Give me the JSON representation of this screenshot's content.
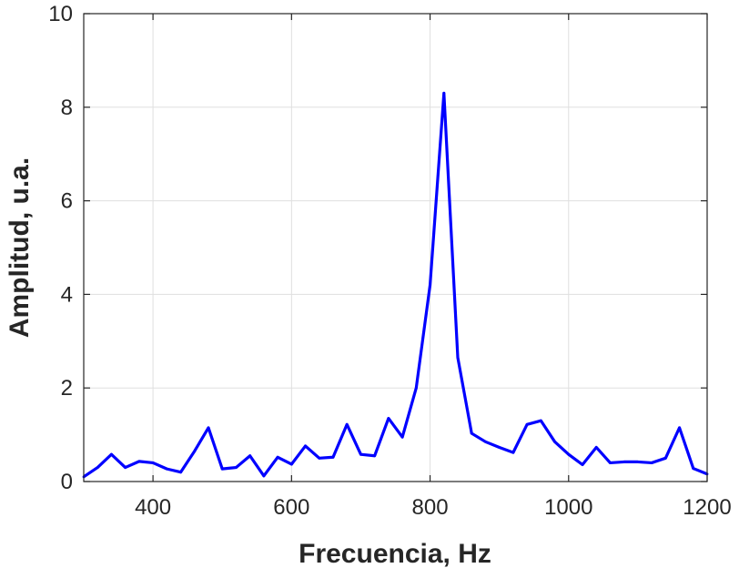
{
  "chart_data": {
    "type": "line",
    "title": "",
    "xlabel": "Frecuencia, Hz",
    "ylabel": "Amplitud, u.a.",
    "xlim": [
      300,
      1200
    ],
    "ylim": [
      0,
      10
    ],
    "xticks": [
      400,
      600,
      800,
      1000,
      1200
    ],
    "yticks": [
      0,
      2,
      4,
      6,
      8,
      10
    ],
    "xtick_labels": [
      "400",
      "600",
      "800",
      "1000",
      "1200"
    ],
    "ytick_labels": [
      "0",
      "2",
      "4",
      "6",
      "8",
      "10"
    ],
    "grid": true,
    "legend": "none",
    "series": [
      {
        "color": "#0000ff",
        "x": [
          300,
          320,
          340,
          360,
          380,
          400,
          420,
          440,
          460,
          480,
          500,
          520,
          540,
          560,
          580,
          600,
          620,
          640,
          660,
          680,
          700,
          720,
          740,
          760,
          780,
          800,
          820,
          840,
          860,
          880,
          900,
          920,
          940,
          960,
          980,
          1000,
          1020,
          1040,
          1060,
          1080,
          1100,
          1120,
          1140,
          1160,
          1180,
          1200
        ],
        "y": [
          0.1,
          0.3,
          0.58,
          0.3,
          0.43,
          0.4,
          0.27,
          0.2,
          0.65,
          1.15,
          0.27,
          0.3,
          0.55,
          0.12,
          0.52,
          0.37,
          0.76,
          0.5,
          0.52,
          1.22,
          0.58,
          0.55,
          1.35,
          0.95,
          2.0,
          4.2,
          8.3,
          2.65,
          1.03,
          0.85,
          0.73,
          0.62,
          1.22,
          1.3,
          0.85,
          0.58,
          0.36,
          0.73,
          0.4,
          0.42,
          0.42,
          0.4,
          0.5,
          1.15,
          0.28,
          0.16
        ]
      }
    ]
  }
}
